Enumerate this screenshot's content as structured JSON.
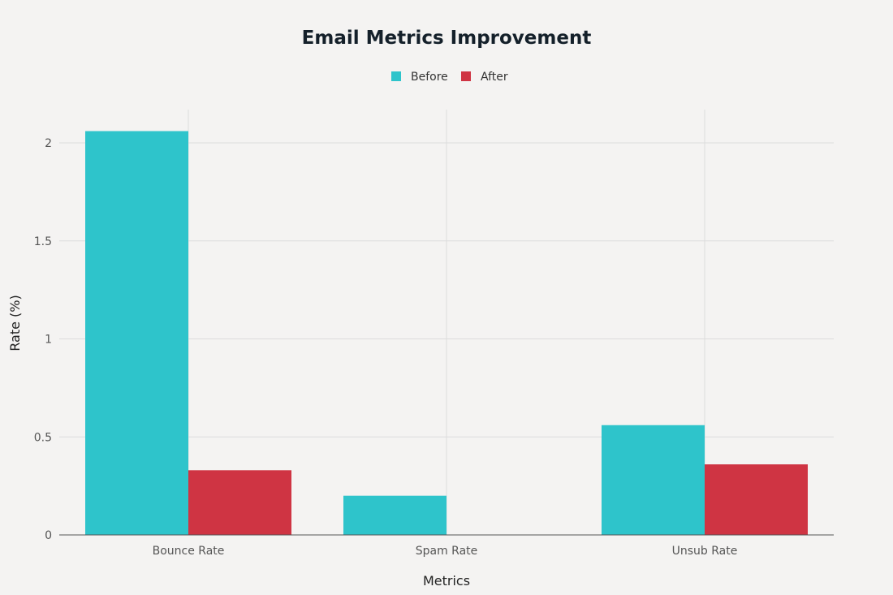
{
  "chart_data": {
    "type": "bar",
    "title": "Email Metrics Improvement",
    "xlabel": "Metrics",
    "ylabel": "Rate (%)",
    "categories": [
      "Bounce Rate",
      "Spam Rate",
      "Unsub Rate"
    ],
    "series": [
      {
        "name": "Before",
        "color": "#2ec4cb",
        "values": [
          2.06,
          0.2,
          0.56
        ]
      },
      {
        "name": "After",
        "color": "#cf3443",
        "values": [
          0.33,
          0,
          0.36
        ]
      }
    ],
    "ylim": [
      0,
      2.1
    ],
    "yticks": [
      0,
      0.5,
      1,
      1.5,
      2
    ],
    "ytick_labels": [
      "0",
      "0.5",
      "1",
      "1.5",
      "2"
    ],
    "grid": true,
    "legend_position": "top-center"
  }
}
